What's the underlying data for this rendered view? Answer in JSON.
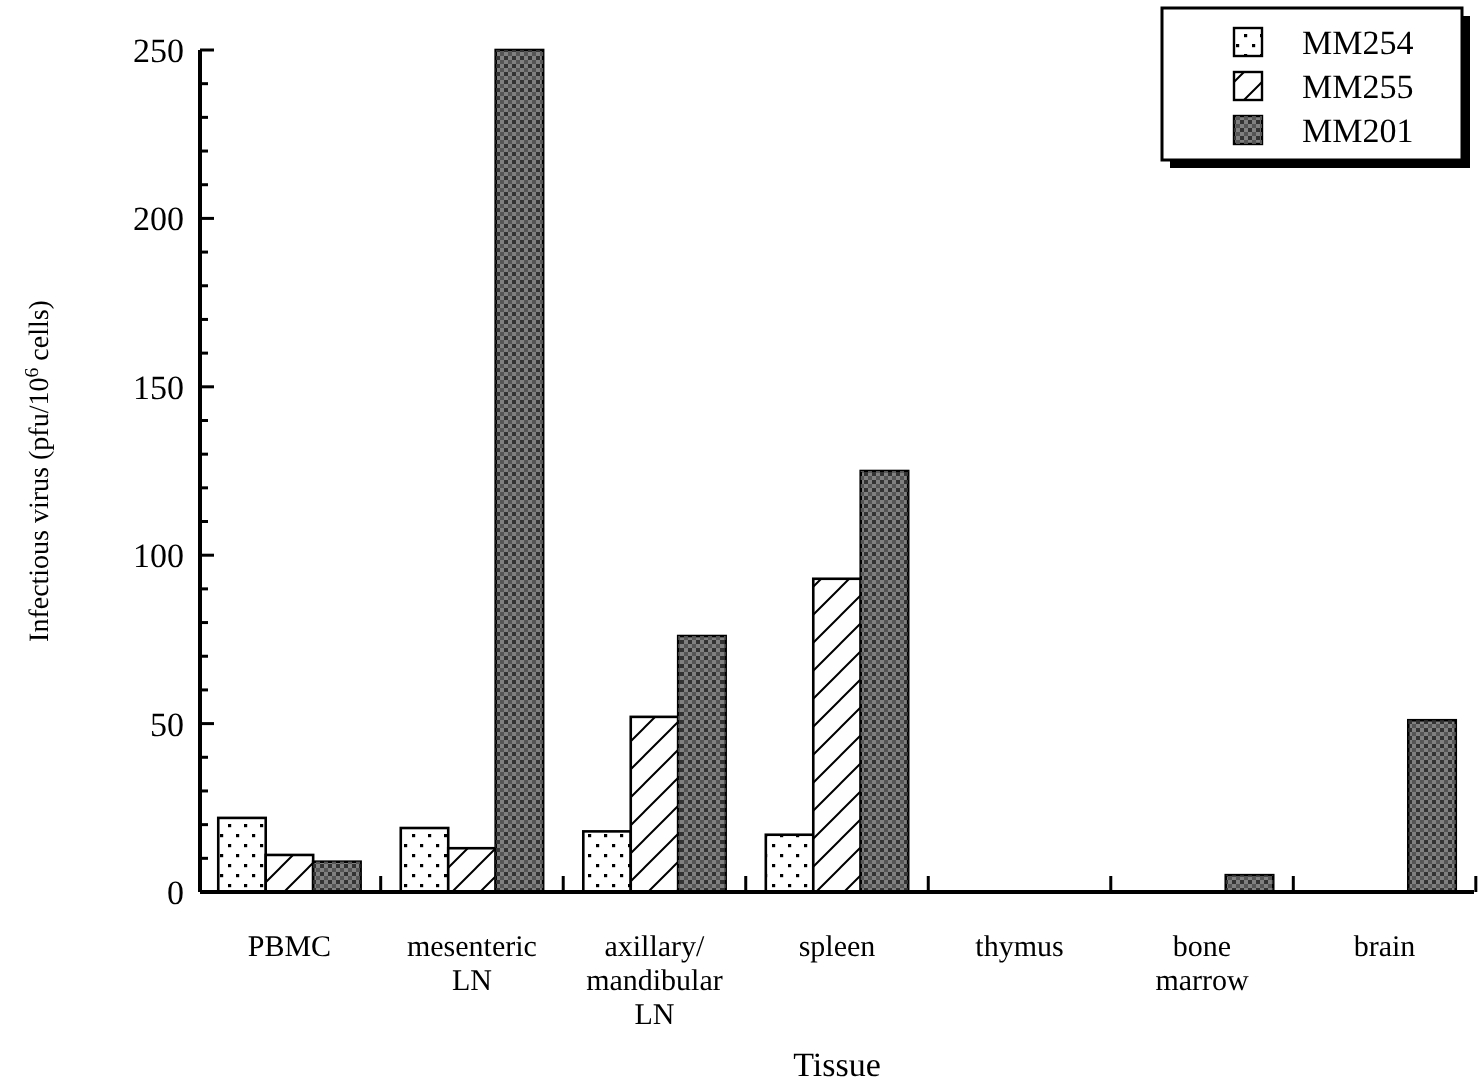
{
  "chart_data": {
    "type": "bar",
    "xlabel": "Tissue",
    "ylabel": "Infectious virus (pfu/10$^{6}$ cells)",
    "categories": [
      "PBMC",
      "mesenteric\nLN",
      "axillary/\nmandibular\nLN",
      "spleen",
      "thymus",
      "bone\nmarrow",
      "brain"
    ],
    "series": [
      {
        "name": "MM254",
        "color": "#ffffff",
        "values": [
          22,
          19,
          18,
          17,
          0,
          0,
          0
        ]
      },
      {
        "name": "MM255",
        "color": "#fefefe",
        "values": [
          11,
          13,
          52,
          93,
          0,
          0,
          0
        ]
      },
      {
        "name": "MM201",
        "color": "#808080",
        "values": [
          9,
          250,
          76,
          125,
          0,
          5,
          51
        ]
      }
    ],
    "ylim": [
      0,
      250
    ],
    "yticks": [
      0,
      {
        "value": 10,
        "label": null
      },
      {
        "value": 20,
        "label": null
      },
      {
        "value": 30,
        "label": null
      },
      {
        "value": 40,
        "label": null
      },
      50,
      {
        "value": 60,
        "label": null
      },
      {
        "value": 70,
        "label": null
      },
      {
        "value": 80,
        "label": null
      },
      {
        "value": 90,
        "label": null
      },
      100,
      {
        "value": 110,
        "label": null
      },
      {
        "value": 120,
        "label": null
      },
      {
        "value": 130,
        "label": null
      },
      {
        "value": 140,
        "label": null
      },
      150,
      {
        "value": 160,
        "label": null
      },
      {
        "value": 170,
        "label": null
      },
      {
        "value": 180,
        "label": null
      },
      {
        "value": 190,
        "label": null
      },
      200,
      {
        "value": 210,
        "label": null
      },
      {
        "value": 220,
        "label": null
      },
      {
        "value": 230,
        "label": null
      },
      {
        "value": 240,
        "label": null
      },
      250
    ],
    "legend": "top right",
    "grid": false
  }
}
